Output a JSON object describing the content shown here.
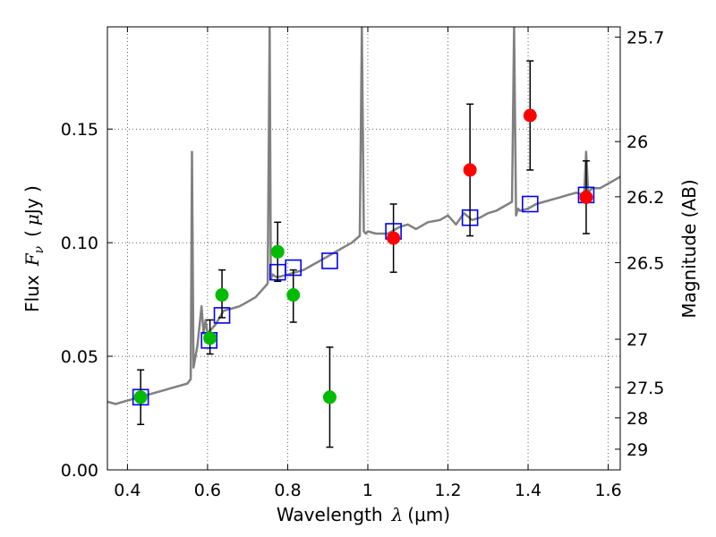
{
  "chart_data": {
    "type": "line",
    "x_axis": {
      "label": "Wavelength",
      "label_symbol": "λ",
      "label_unit": "(μm)",
      "range": [
        0.35,
        1.63
      ],
      "ticks": [
        0.4,
        0.6,
        0.8,
        1.0,
        1.2,
        1.4,
        1.6
      ],
      "tick_labels": [
        "0.4",
        "0.6",
        "0.8",
        "1",
        "1.2",
        "1.4",
        "1.6"
      ]
    },
    "y_axis": {
      "label": "Flux",
      "label_symbol": "F",
      "label_subscript": "ν",
      "label_unit_open": "(",
      "label_unit_mu": "μ",
      "label_unit_rest": "Jy )",
      "range": [
        0.0,
        0.195
      ],
      "ticks": [
        0.0,
        0.05,
        0.1,
        0.15
      ],
      "tick_labels": [
        "0.00",
        "0.05",
        "0.10",
        "0.15"
      ]
    },
    "y2_axis": {
      "label": "Magnitude (AB)",
      "ticks": [
        {
          "flux": 0.1905,
          "label": "25.7"
        },
        {
          "flux": 0.1445,
          "label": "26"
        },
        {
          "flux": 0.1202,
          "label": "26.2"
        },
        {
          "flux": 0.0912,
          "label": "26.5"
        },
        {
          "flux": 0.0575,
          "label": "27"
        },
        {
          "flux": 0.0363,
          "label": "27.5"
        },
        {
          "flux": 0.0229,
          "label": "28"
        },
        {
          "flux": 0.0091,
          "label": "29"
        }
      ]
    },
    "grid": true,
    "series": [
      {
        "kind": "spectrum",
        "color": "#808080",
        "x": [
          0.35,
          0.37,
          0.39,
          0.41,
          0.43,
          0.45,
          0.47,
          0.49,
          0.51,
          0.53,
          0.55,
          0.558,
          0.561,
          0.565,
          0.575,
          0.585,
          0.59,
          0.595,
          0.6,
          0.62,
          0.64,
          0.66,
          0.68,
          0.7,
          0.72,
          0.74,
          0.75,
          0.755,
          0.758,
          0.762,
          0.77,
          0.78,
          0.8,
          0.82,
          0.84,
          0.86,
          0.88,
          0.9,
          0.92,
          0.94,
          0.96,
          0.98,
          0.985,
          0.99,
          0.995,
          1.0,
          1.02,
          1.05,
          1.08,
          1.1,
          1.12,
          1.15,
          1.18,
          1.2,
          1.22,
          1.24,
          1.26,
          1.28,
          1.3,
          1.32,
          1.34,
          1.36,
          1.365,
          1.37,
          1.375,
          1.38,
          1.4,
          1.42,
          1.44,
          1.46,
          1.48,
          1.5,
          1.52,
          1.54,
          1.545,
          1.55,
          1.555,
          1.56,
          1.58,
          1.6,
          1.62,
          1.63
        ],
        "y": [
          0.03,
          0.029,
          0.03,
          0.031,
          0.032,
          0.033,
          0.034,
          0.035,
          0.036,
          0.037,
          0.038,
          0.04,
          0.14,
          0.045,
          0.055,
          0.072,
          0.06,
          0.066,
          0.06,
          0.064,
          0.07,
          0.071,
          0.072,
          0.074,
          0.076,
          0.08,
          0.082,
          0.195,
          0.084,
          0.086,
          0.085,
          0.085,
          0.086,
          0.087,
          0.088,
          0.09,
          0.092,
          0.094,
          0.096,
          0.098,
          0.1,
          0.103,
          0.195,
          0.105,
          0.104,
          0.105,
          0.104,
          0.104,
          0.107,
          0.108,
          0.106,
          0.109,
          0.11,
          0.112,
          0.108,
          0.113,
          0.11,
          0.111,
          0.113,
          0.114,
          0.116,
          0.118,
          0.195,
          0.112,
          0.115,
          0.114,
          0.115,
          0.117,
          0.118,
          0.119,
          0.12,
          0.121,
          0.122,
          0.121,
          0.14,
          0.122,
          0.123,
          0.124,
          0.124,
          0.126,
          0.128,
          0.129
        ]
      },
      {
        "kind": "model-points",
        "color": "#0000ff",
        "marker": "open-square",
        "x": [
          0.433,
          0.604,
          0.636,
          0.775,
          0.814,
          0.905,
          1.064,
          1.255,
          1.405,
          1.545
        ],
        "y": [
          0.032,
          0.057,
          0.068,
          0.087,
          0.089,
          0.092,
          0.105,
          0.111,
          0.117,
          0.121
        ]
      },
      {
        "kind": "observed-points",
        "color": "#00bb00",
        "marker": "filled-circle",
        "x": [
          0.433,
          0.606,
          0.636,
          0.775,
          0.814,
          0.905
        ],
        "y": [
          0.032,
          0.058,
          0.077,
          0.096,
          0.077,
          0.032
        ],
        "yerr_low": [
          0.012,
          0.007,
          0.01,
          0.013,
          0.012,
          0.022
        ],
        "yerr_high": [
          0.012,
          0.008,
          0.011,
          0.013,
          0.011,
          0.022
        ]
      },
      {
        "kind": "observed-points",
        "color": "#ff0000",
        "marker": "filled-circle",
        "x": [
          1.064,
          1.255,
          1.405,
          1.545
        ],
        "y": [
          0.102,
          0.132,
          0.156,
          0.12
        ],
        "yerr_low": [
          0.015,
          0.029,
          0.024,
          0.016
        ],
        "yerr_high": [
          0.015,
          0.029,
          0.024,
          0.016
        ]
      }
    ]
  }
}
